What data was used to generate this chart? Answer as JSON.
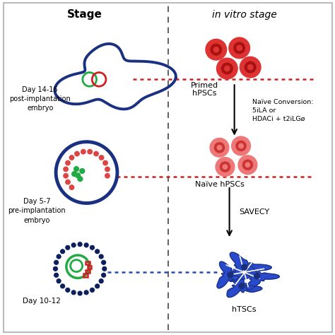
{
  "title_left": "Stage",
  "title_right": "in vitro stage",
  "bg_color": "#ffffff",
  "border_color": "#bbbbbb",
  "blue_dark": "#1a3080",
  "blue_mid": "#2a4aaa",
  "blue_light": "#3a5acc",
  "red_dark": "#cc2222",
  "red_primed": "#dd3333",
  "red_naive": "#ee6666",
  "red_inner": "#cc4455",
  "green_color": "#22aa44",
  "labels": {
    "day1416": "Day 14-16\npost-implantation\nembryo",
    "day57": "Day 5-7\npre-implantation\nembryo",
    "day1012": "Day 10-12",
    "primed": "Primed\nhPSCs",
    "naive_conversion": "Naïve Conversion:\n5iLA or\nHDACi + t2iLGø",
    "naive_hpscs": "Naïve hPSCs",
    "savecy": "SAVECY",
    "htscs": "hTSCs"
  }
}
